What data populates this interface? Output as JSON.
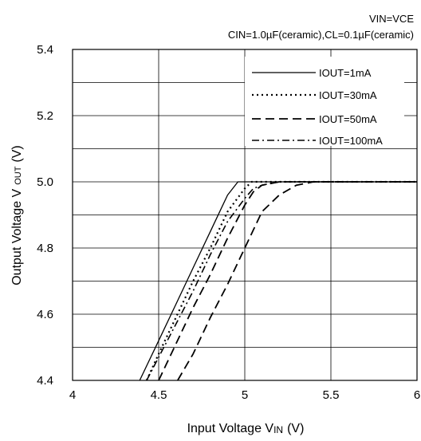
{
  "chart_data": {
    "type": "line",
    "annotations": [
      "VIN=VCE",
      "CIN=1.0µF(ceramic),CL=0.1µF(ceramic)"
    ],
    "xlabel": "Input Voltage V",
    "xlabel_sub": "IN",
    "xlabel_unit": "(V)",
    "ylabel": "Output Voltage V",
    "ylabel_sub": "OUT",
    "ylabel_unit": "(V)",
    "xlim": [
      4,
      6
    ],
    "ylim": [
      4.4,
      5.4
    ],
    "x_ticks": [
      4,
      4.5,
      5,
      5.5,
      6
    ],
    "x_tick_labels": [
      "4",
      "4.5",
      "5",
      "5.5",
      "6"
    ],
    "y_ticks": [
      4.4,
      4.6,
      4.8,
      5.0,
      5.2,
      5.4
    ],
    "y_tick_labels": [
      "4.4",
      "4.6",
      "4.8",
      "5.0",
      "5.2",
      "5.4"
    ],
    "grid": true,
    "legend_position": "top-right",
    "series": [
      {
        "name": "IOUT=1mA",
        "style": "solid",
        "x": [
          4.39,
          4.5,
          4.6,
          4.7,
          4.8,
          4.9,
          4.96,
          5.0,
          5.1,
          5.3,
          6.0
        ],
        "y": [
          4.4,
          4.52,
          4.63,
          4.74,
          4.85,
          4.96,
          5.0,
          5.0,
          5.0,
          5.0,
          5.0
        ]
      },
      {
        "name": "IOUT=30mA",
        "style": "dotted",
        "x": [
          4.43,
          4.5,
          4.6,
          4.7,
          4.8,
          4.9,
          5.0,
          5.04,
          5.1,
          5.3,
          6.0
        ],
        "y": [
          4.4,
          4.48,
          4.59,
          4.7,
          4.8,
          4.91,
          4.98,
          5.0,
          5.0,
          5.0,
          5.0
        ]
      },
      {
        "name": "IOUT=50mA",
        "style": "dashed",
        "x": [
          4.5,
          4.6,
          4.7,
          4.8,
          4.9,
          5.0,
          5.05,
          5.1,
          5.2,
          5.35,
          6.0
        ],
        "y": [
          4.4,
          4.51,
          4.62,
          4.72,
          4.83,
          4.93,
          4.97,
          4.99,
          5.0,
          5.0,
          5.0
        ]
      },
      {
        "name": "IOUT=100mA",
        "style": "dashdot",
        "x": [
          4.43,
          4.5,
          4.6,
          4.7,
          4.8,
          4.9,
          5.0,
          5.05,
          5.1,
          5.2,
          5.4,
          6.0
        ],
        "y": [
          4.4,
          4.47,
          4.57,
          4.67,
          4.78,
          4.88,
          4.95,
          4.98,
          4.99,
          5.0,
          5.0,
          5.0
        ]
      },
      {
        "name": "",
        "style": "dashed",
        "x": [
          4.61,
          4.7,
          4.8,
          4.9,
          5.0,
          5.1,
          5.2,
          5.3,
          5.4,
          5.5,
          6.0
        ],
        "y": [
          4.4,
          4.48,
          4.59,
          4.69,
          4.8,
          4.91,
          4.96,
          4.99,
          5.0,
          5.0,
          5.0
        ]
      }
    ]
  }
}
